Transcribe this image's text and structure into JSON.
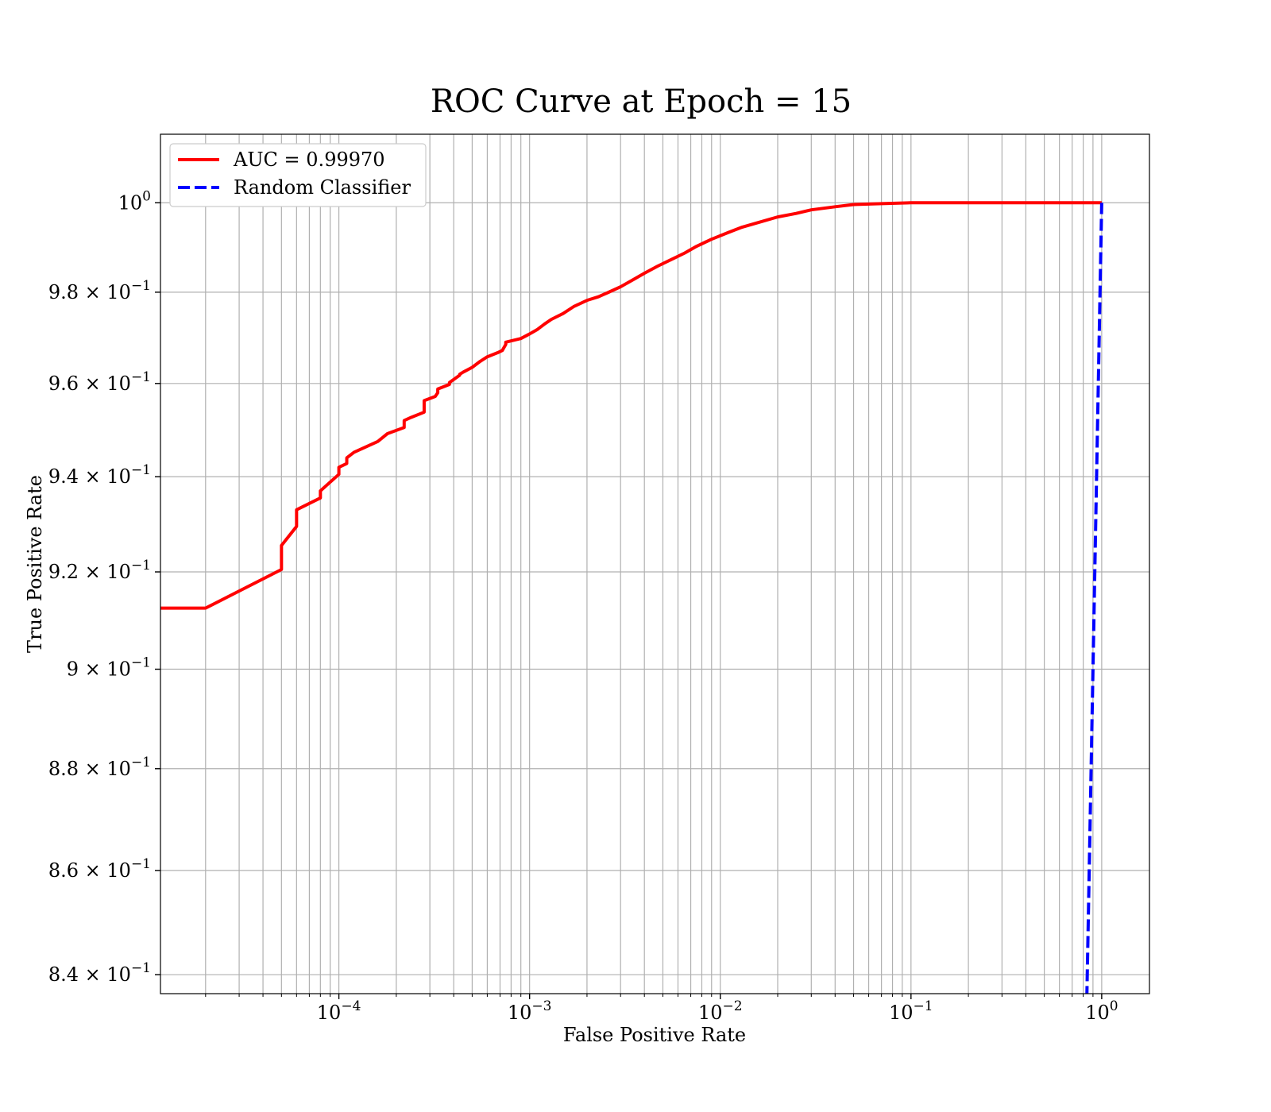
{
  "chart_data": {
    "type": "line",
    "title": "ROC Curve at Epoch = 15",
    "xlabel": "False Positive Rate",
    "ylabel": "True Positive Rate",
    "xscale": "log",
    "yscale": "log",
    "xlim": [
      1.16e-05,
      1.78
    ],
    "ylim": [
      0.8364,
      1.0156
    ],
    "grid": true,
    "legend_position": "upper-left",
    "x_ticks": [
      {
        "value": 0.0001,
        "base": "10",
        "exp": "−4"
      },
      {
        "value": 0.001,
        "base": "10",
        "exp": "−3"
      },
      {
        "value": 0.01,
        "base": "10",
        "exp": "−2"
      },
      {
        "value": 0.1,
        "base": "10",
        "exp": "−1"
      },
      {
        "value": 1,
        "base": "10",
        "exp": "0"
      }
    ],
    "y_ticks": [
      {
        "value": 1.0,
        "mantissa": "",
        "base": "10",
        "exp": "0"
      },
      {
        "value": 0.98,
        "mantissa": "9.8",
        "base": "10",
        "exp": "−1"
      },
      {
        "value": 0.96,
        "mantissa": "9.6",
        "base": "10",
        "exp": "−1"
      },
      {
        "value": 0.94,
        "mantissa": "9.4",
        "base": "10",
        "exp": "−1"
      },
      {
        "value": 0.92,
        "mantissa": "9.2",
        "base": "10",
        "exp": "−1"
      },
      {
        "value": 0.9,
        "mantissa": "9",
        "base": "10",
        "exp": "−1"
      },
      {
        "value": 0.88,
        "mantissa": "8.8",
        "base": "10",
        "exp": "−1"
      },
      {
        "value": 0.86,
        "mantissa": "8.6",
        "base": "10",
        "exp": "−1"
      },
      {
        "value": 0.84,
        "mantissa": "8.4",
        "base": "10",
        "exp": "−1"
      }
    ],
    "series": [
      {
        "name": "AUC = 0.99970",
        "color": "#ff0000",
        "style": "solid",
        "x": [
          1.16e-05,
          2e-05,
          5e-05,
          5e-05,
          6e-05,
          6e-05,
          8e-05,
          8e-05,
          0.0001,
          0.0001,
          0.00011,
          0.00011,
          0.00012,
          0.00016,
          0.00018,
          0.00022,
          0.00022,
          0.00024,
          0.00028,
          0.00028,
          0.00032,
          0.00033,
          0.00033,
          0.00038,
          0.00038,
          0.00043,
          0.00043,
          0.00045,
          0.0005,
          0.00055,
          0.0006,
          0.00068,
          0.00072,
          0.00075,
          0.00075,
          0.0009,
          0.001,
          0.0011,
          0.0012,
          0.0013,
          0.0015,
          0.0017,
          0.002,
          0.0023,
          0.0026,
          0.003,
          0.0035,
          0.004,
          0.0047,
          0.0055,
          0.0065,
          0.0075,
          0.009,
          0.011,
          0.013,
          0.016,
          0.02,
          0.025,
          0.03,
          0.04,
          0.05,
          0.07,
          0.1,
          0.3,
          1.0
        ],
        "y": [
          0.9125,
          0.9125,
          0.9205,
          0.9255,
          0.9295,
          0.933,
          0.9355,
          0.937,
          0.9405,
          0.942,
          0.9428,
          0.944,
          0.9452,
          0.9475,
          0.9492,
          0.9505,
          0.952,
          0.9527,
          0.9538,
          0.9563,
          0.9572,
          0.958,
          0.9588,
          0.9598,
          0.9602,
          0.9618,
          0.962,
          0.9625,
          0.9635,
          0.9648,
          0.9658,
          0.9667,
          0.9672,
          0.9685,
          0.969,
          0.9698,
          0.9708,
          0.9718,
          0.973,
          0.974,
          0.9753,
          0.9768,
          0.9782,
          0.979,
          0.98,
          0.9812,
          0.9828,
          0.9842,
          0.9858,
          0.9872,
          0.9887,
          0.9902,
          0.9918,
          0.9933,
          0.9945,
          0.9956,
          0.9968,
          0.9976,
          0.9984,
          0.9991,
          0.9996,
          0.9998,
          1.0,
          1.0,
          1.0
        ]
      },
      {
        "name": "Random Classifier",
        "color": "#0000ff",
        "style": "dashed",
        "x": [
          0.82,
          1.0
        ],
        "y": [
          0.82,
          1.0
        ]
      }
    ]
  }
}
